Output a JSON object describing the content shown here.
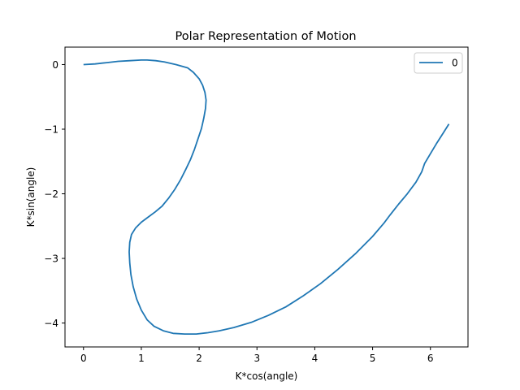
{
  "chart_data": {
    "type": "line",
    "title": "Polar Representation of Motion",
    "xlabel": "K*cos(angle)",
    "ylabel": "K*sin(angle)",
    "xlim": [
      -0.32,
      6.65
    ],
    "ylim": [
      -4.37,
      0.27
    ],
    "xticks": [
      0,
      1,
      2,
      3,
      4,
      5,
      6
    ],
    "xtick_labels": [
      "0",
      "1",
      "2",
      "3",
      "4",
      "5",
      "6"
    ],
    "yticks": [
      0,
      -1,
      -2,
      -3,
      -4
    ],
    "ytick_labels": [
      "0",
      "−1",
      "−2",
      "−3",
      "−4"
    ],
    "grid": false,
    "legend_position": "top-right",
    "series": [
      {
        "name": "0",
        "color": "#1f77b4",
        "x": [
          0.0,
          0.2,
          0.4,
          0.6,
          0.8,
          1.0,
          1.1,
          1.25,
          1.4,
          1.6,
          1.8,
          1.9,
          2.0,
          2.06,
          2.1,
          2.12,
          2.11,
          2.08,
          2.04,
          1.98,
          1.92,
          1.85,
          1.77,
          1.68,
          1.58,
          1.47,
          1.36,
          1.24,
          1.12,
          1.0,
          0.9,
          0.83,
          0.8,
          0.79,
          0.8,
          0.82,
          0.86,
          0.92,
          1.0,
          1.1,
          1.22,
          1.38,
          1.55,
          1.75,
          1.95,
          2.15,
          2.35,
          2.6,
          2.9,
          3.2,
          3.5,
          3.8,
          4.1,
          4.4,
          4.7,
          5.0,
          5.2,
          5.3,
          5.45,
          5.6,
          5.75,
          5.85,
          5.9,
          6.0,
          6.1,
          6.2,
          6.32
        ],
        "y": [
          0.0,
          0.01,
          0.03,
          0.05,
          0.06,
          0.07,
          0.07,
          0.06,
          0.04,
          0.0,
          -0.05,
          -0.12,
          -0.22,
          -0.32,
          -0.43,
          -0.55,
          -0.68,
          -0.83,
          -0.99,
          -1.15,
          -1.31,
          -1.47,
          -1.62,
          -1.78,
          -1.93,
          -2.07,
          -2.19,
          -2.28,
          -2.36,
          -2.44,
          -2.53,
          -2.63,
          -2.75,
          -2.9,
          -3.07,
          -3.25,
          -3.44,
          -3.63,
          -3.8,
          -3.95,
          -4.05,
          -4.12,
          -4.16,
          -4.17,
          -4.17,
          -4.15,
          -4.12,
          -4.07,
          -3.99,
          -3.88,
          -3.75,
          -3.58,
          -3.39,
          -3.17,
          -2.93,
          -2.66,
          -2.45,
          -2.33,
          -2.16,
          -2.0,
          -1.82,
          -1.66,
          -1.53,
          -1.38,
          -1.23,
          -1.09,
          -0.92
        ]
      }
    ]
  }
}
